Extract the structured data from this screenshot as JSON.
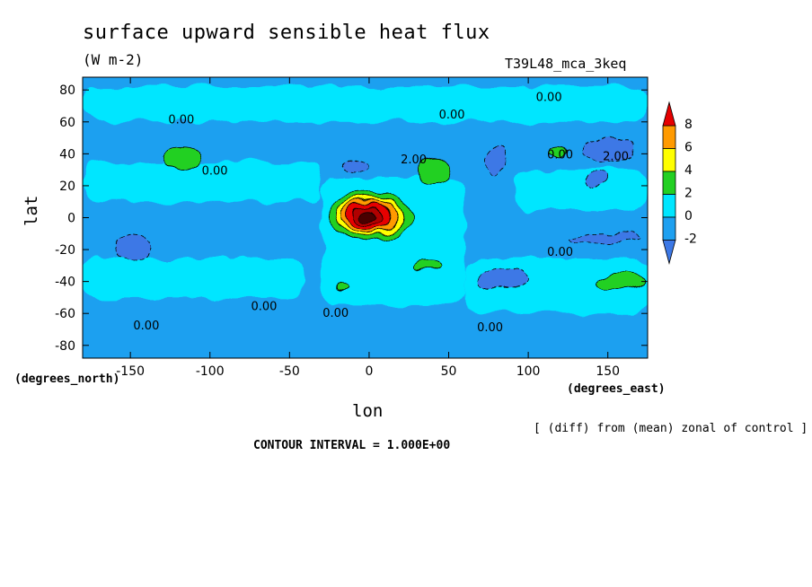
{
  "title": "surface upward sensible heat flux",
  "units": "(W m-2)",
  "run_label": "T39L48_mca_3keq",
  "chart_data": {
    "type": "heatmap",
    "title": "surface upward sensible heat flux",
    "subtitle": "(W m-2)",
    "xlabel": "lon",
    "ylabel": "lat",
    "x_unit": "(degrees_east)",
    "y_unit": "(degrees_north)",
    "xlim": [
      -180,
      175
    ],
    "ylim": [
      -88,
      88
    ],
    "x_ticks": [
      -150,
      -100,
      -50,
      0,
      50,
      100,
      150
    ],
    "y_ticks": [
      80,
      60,
      40,
      20,
      0,
      -20,
      -40,
      -60,
      -80
    ],
    "x_tick_labels": [
      "-150",
      "-100",
      "-50",
      "0",
      "50",
      "100",
      "150"
    ],
    "y_tick_labels": [
      "80",
      "60",
      "40",
      "20",
      "0",
      "-20",
      "-40",
      "-60",
      "-80"
    ],
    "colorbar": {
      "levels": [
        -2,
        0,
        2,
        4,
        6,
        8
      ],
      "level_labels": [
        "-2",
        "0",
        "2",
        "4",
        "6",
        "8"
      ],
      "colors": [
        "#3c78e6",
        "#1ea0f0",
        "#00e6ff",
        "#22d022",
        "#ffff00",
        "#ff9a00",
        "#e60000"
      ]
    },
    "contour_labels": [
      {
        "text": "0.00",
        "lon": -118,
        "lat": 59
      },
      {
        "text": "0.00",
        "lon": 52,
        "lat": 62
      },
      {
        "text": "0.00",
        "lon": 113,
        "lat": 73
      },
      {
        "text": "0.00",
        "lon": -97,
        "lat": 27
      },
      {
        "text": "2.00",
        "lon": 28,
        "lat": 34
      },
      {
        "text": "0.00",
        "lon": 120,
        "lat": 37
      },
      {
        "text": "2.00",
        "lon": 155,
        "lat": 36
      },
      {
        "text": "0.00",
        "lon": 120,
        "lat": -24
      },
      {
        "text": "0.00",
        "lon": -66,
        "lat": -58
      },
      {
        "text": "0.00",
        "lon": -21,
        "lat": -62
      },
      {
        "text": "0.00",
        "lon": 76,
        "lat": -71
      },
      {
        "text": "0.00",
        "lon": -140,
        "lat": -70
      }
    ],
    "features": [
      {
        "kind": "negative",
        "lon": -148,
        "lat": -19,
        "rx": 11,
        "ry": 8
      },
      {
        "kind": "negative",
        "lon": 80,
        "lat": 36,
        "rx": 6,
        "ry": 9
      },
      {
        "kind": "negative",
        "lon": 150,
        "lat": 42,
        "rx": 17,
        "ry": 8
      },
      {
        "kind": "negative",
        "lon": 142,
        "lat": 23,
        "rx": 6,
        "ry": 5
      },
      {
        "kind": "negative",
        "lon": 85,
        "lat": -38,
        "rx": 16,
        "ry": 6
      },
      {
        "kind": "negative",
        "lon": 148,
        "lat": -13,
        "rx": 23,
        "ry": 3
      },
      {
        "kind": "negative",
        "lon": -10,
        "lat": 33,
        "rx": 8,
        "ry": 4
      },
      {
        "kind": "positive",
        "lon": -118,
        "lat": 37,
        "rx": 12,
        "ry": 7
      },
      {
        "kind": "positive",
        "lon": 40,
        "lat": 29,
        "rx": 11,
        "ry": 8
      },
      {
        "kind": "positive",
        "lon": 38,
        "lat": -31,
        "rx": 11,
        "ry": 3
      },
      {
        "kind": "positive",
        "lon": -17,
        "lat": -43,
        "rx": 4,
        "ry": 2
      },
      {
        "kind": "positive",
        "lon": 158,
        "lat": -40,
        "rx": 16,
        "ry": 5
      },
      {
        "kind": "positive",
        "lon": 118,
        "lat": 40,
        "rx": 5,
        "ry": 3
      },
      {
        "kind": "maximum",
        "lon": 0,
        "lat": 1,
        "peak": 8.5
      }
    ]
  },
  "annotation_note": "[ (diff) from (mean) zonal of control ]",
  "contour_interval": "CONTOUR INTERVAL = 1.000E+00"
}
